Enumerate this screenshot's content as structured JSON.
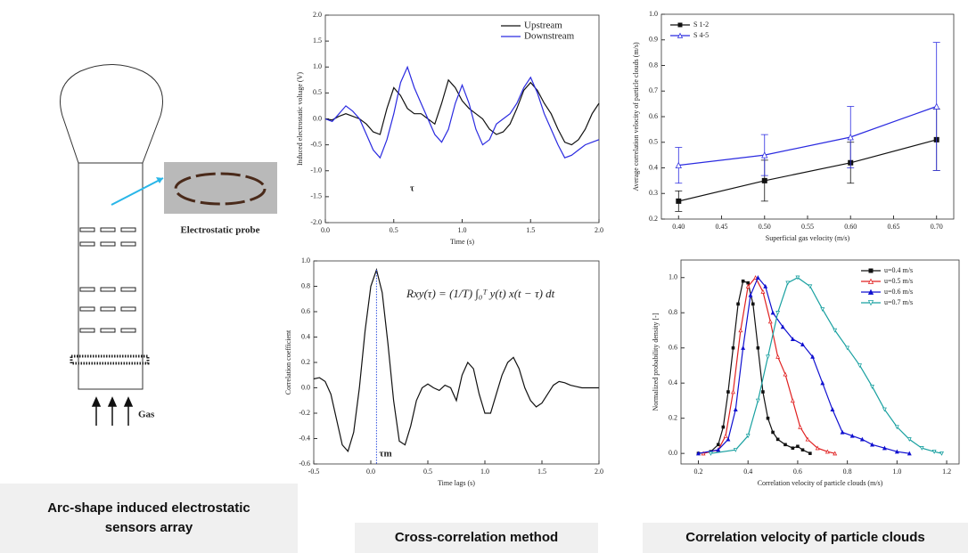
{
  "diagram": {
    "probe_label": "Electrostatic probe",
    "gas_label": "Gas"
  },
  "captions": [
    "Arc-shape induced electrostatic sensors array",
    "Cross-correlation method",
    "Correlation velocity of particle clouds"
  ],
  "chart_data": [
    {
      "type": "line",
      "x_label": "Time (s)",
      "y_label": "Induced electrostatic voltage (V)",
      "annotations": [
        "τ"
      ],
      "legend": "upper right",
      "x": [
        0,
        0.05,
        0.1,
        0.15,
        0.2,
        0.25,
        0.3,
        0.35,
        0.4,
        0.45,
        0.5,
        0.55,
        0.6,
        0.65,
        0.7,
        0.75,
        0.8,
        0.85,
        0.9,
        0.95,
        1.0,
        1.05,
        1.1,
        1.15,
        1.2,
        1.25,
        1.3,
        1.35,
        1.4,
        1.45,
        1.5,
        1.55,
        1.6,
        1.65,
        1.7,
        1.75,
        1.8,
        1.85,
        1.9,
        1.95,
        2.0
      ],
      "series": [
        {
          "name": "Upstream",
          "color": "#111111",
          "values": [
            0,
            -0.02,
            0.05,
            0.1,
            0.05,
            0,
            -0.1,
            -0.25,
            -0.3,
            0.2,
            0.6,
            0.45,
            0.2,
            0.1,
            0.1,
            0.0,
            -0.1,
            0.3,
            0.75,
            0.6,
            0.35,
            0.2,
            0.1,
            0.0,
            -0.2,
            -0.3,
            -0.25,
            -0.1,
            0.2,
            0.55,
            0.7,
            0.55,
            0.3,
            0.1,
            -0.2,
            -0.45,
            -0.5,
            -0.4,
            -0.2,
            0.1,
            0.3
          ]
        },
        {
          "name": "Downstream",
          "color": "#2a2ae0",
          "values": [
            0,
            -0.05,
            0.1,
            0.25,
            0.15,
            0,
            -0.3,
            -0.6,
            -0.75,
            -0.4,
            0.1,
            0.7,
            1.0,
            0.6,
            0.3,
            0.0,
            -0.3,
            -0.45,
            -0.2,
            0.3,
            0.65,
            0.3,
            -0.2,
            -0.5,
            -0.4,
            -0.1,
            0.0,
            0.1,
            0.3,
            0.6,
            0.8,
            0.5,
            0.1,
            -0.2,
            -0.5,
            -0.75,
            -0.7,
            -0.6,
            -0.5,
            -0.45,
            -0.4
          ]
        }
      ],
      "xlim": [
        0,
        2
      ],
      "xticks": [
        {
          "value": 0,
          "label": "0.0"
        },
        0.5,
        {
          "value": 1,
          "label": "1.0"
        },
        1.5,
        {
          "value": 2,
          "label": "2.0"
        }
      ],
      "ylim": [
        -2,
        2
      ],
      "yticks": [
        {
          "value": -2,
          "label": "-2.0"
        },
        -1.5,
        {
          "value": -1,
          "label": "-1.0"
        },
        -0.5,
        {
          "value": 0,
          "label": "0.0"
        },
        0.5,
        {
          "value": 1,
          "label": "1.0"
        },
        1.5,
        {
          "value": 2,
          "label": "2.0"
        }
      ]
    },
    {
      "type": "line",
      "x_label": "Time lags (s)",
      "y_label": "Correlation  coefficient",
      "annotations": [
        "τm",
        "Rxy(τ) = (1/T) ∫₀ᵀ y(t) x(t − τ) dt"
      ],
      "x": [
        -0.5,
        -0.45,
        -0.4,
        -0.35,
        -0.3,
        -0.25,
        -0.2,
        -0.15,
        -0.1,
        -0.05,
        0,
        0.05,
        0.1,
        0.15,
        0.2,
        0.25,
        0.3,
        0.35,
        0.4,
        0.45,
        0.5,
        0.55,
        0.6,
        0.65,
        0.7,
        0.75,
        0.8,
        0.85,
        0.9,
        0.95,
        1.0,
        1.05,
        1.1,
        1.15,
        1.2,
        1.25,
        1.3,
        1.35,
        1.4,
        1.45,
        1.5,
        1.55,
        1.6,
        1.65,
        1.7,
        1.75,
        1.8,
        1.85,
        1.9,
        1.95,
        2.0
      ],
      "series": [
        {
          "name": "Correlation  coefficient",
          "color": "#111111",
          "values": [
            0.07,
            0.08,
            0.05,
            -0.05,
            -0.25,
            -0.45,
            -0.5,
            -0.35,
            0.0,
            0.45,
            0.8,
            0.93,
            0.75,
            0.35,
            -0.1,
            -0.42,
            -0.45,
            -0.3,
            -0.1,
            0.0,
            0.03,
            0.0,
            -0.02,
            0.02,
            0.0,
            -0.1,
            0.1,
            0.2,
            0.15,
            -0.05,
            -0.2,
            -0.2,
            -0.05,
            0.1,
            0.2,
            0.24,
            0.15,
            0.0,
            -0.1,
            -0.15,
            -0.12,
            -0.05,
            0.02,
            0.05,
            0.04,
            0.02,
            0.01,
            0.0,
            0.0,
            0.0,
            0.0
          ]
        }
      ],
      "xlim": [
        -0.5,
        2
      ],
      "xticks": [
        -0.5,
        {
          "value": 0,
          "label": "0.0"
        },
        0.5,
        {
          "value": 1,
          "label": "1.0"
        },
        1.5,
        {
          "value": 2,
          "label": "2.0"
        }
      ],
      "ylim": [
        -0.6,
        1.0
      ],
      "yticks": [
        -0.6,
        -0.4,
        -0.2,
        {
          "value": 0,
          "label": "0.0"
        },
        0.2,
        0.4,
        0.6,
        0.8,
        {
          "value": 1,
          "label": "1.0"
        }
      ]
    },
    {
      "type": "line",
      "x_label": "Superficial gas velocity (m/s)",
      "y_label": "Average correlation velocity of particle clouds (m/s)",
      "legend": "upper left",
      "x": [
        0.4,
        0.5,
        0.6,
        0.7
      ],
      "series": [
        {
          "name": "S 1-2",
          "color": "#111111",
          "marker": "square",
          "values": [
            0.27,
            0.35,
            0.42,
            0.51
          ],
          "errors": [
            0.04,
            0.08,
            0.08,
            0.12
          ]
        },
        {
          "name": "S 4-5",
          "color": "#2a2ae0",
          "marker": "triangle-open",
          "values": [
            0.41,
            0.45,
            0.52,
            0.64
          ],
          "errors": [
            0.07,
            0.08,
            0.12,
            0.25
          ]
        }
      ],
      "xlim": [
        0.38,
        0.72
      ],
      "xticks": [
        {
          "value": 0.4,
          "label": "0.40"
        },
        0.45,
        {
          "value": 0.5,
          "label": "0.50"
        },
        0.55,
        {
          "value": 0.6,
          "label": "0.60"
        },
        0.65,
        {
          "value": 0.7,
          "label": "0.70"
        }
      ],
      "ylim": [
        0.2,
        1.0
      ],
      "yticks": [
        0.2,
        0.3,
        0.4,
        0.5,
        0.6,
        0.7,
        0.8,
        0.9,
        {
          "value": 1,
          "label": "1.0"
        }
      ]
    },
    {
      "type": "line",
      "x_label": "Correlation velocity of particle clouds (m/s)",
      "y_label": "Normalized probability density [-]",
      "legend": "upper right",
      "series": [
        {
          "name": "u=0.4 m/s",
          "color": "#111111",
          "marker": "square",
          "x": [
            0.2,
            0.25,
            0.28,
            0.3,
            0.32,
            0.34,
            0.36,
            0.38,
            0.4,
            0.42,
            0.44,
            0.46,
            0.48,
            0.5,
            0.52,
            0.55,
            0.58,
            0.6,
            0.62,
            0.65
          ],
          "values": [
            0,
            0.01,
            0.05,
            0.15,
            0.35,
            0.6,
            0.85,
            0.98,
            0.97,
            0.85,
            0.6,
            0.35,
            0.2,
            0.12,
            0.08,
            0.05,
            0.03,
            0.04,
            0.02,
            0.0
          ]
        },
        {
          "name": "u=0.5 m/s",
          "color": "#e02020",
          "marker": "triangle-open",
          "x": [
            0.22,
            0.28,
            0.31,
            0.34,
            0.37,
            0.4,
            0.43,
            0.46,
            0.49,
            0.52,
            0.55,
            0.58,
            0.61,
            0.64,
            0.68,
            0.72,
            0.75
          ],
          "values": [
            0,
            0.02,
            0.1,
            0.35,
            0.7,
            0.95,
            1.0,
            0.92,
            0.75,
            0.55,
            0.45,
            0.3,
            0.15,
            0.08,
            0.03,
            0.01,
            0
          ]
        },
        {
          "name": "u=0.6 m/s",
          "color": "#1010d0",
          "marker": "triangle",
          "x": [
            0.2,
            0.28,
            0.32,
            0.35,
            0.38,
            0.41,
            0.44,
            0.47,
            0.5,
            0.54,
            0.58,
            0.62,
            0.66,
            0.7,
            0.74,
            0.78,
            0.82,
            0.86,
            0.9,
            0.95,
            1.0,
            1.05
          ],
          "values": [
            0,
            0.02,
            0.08,
            0.25,
            0.6,
            0.9,
            1.0,
            0.95,
            0.8,
            0.72,
            0.65,
            0.62,
            0.55,
            0.4,
            0.25,
            0.12,
            0.1,
            0.08,
            0.05,
            0.03,
            0.01,
            0
          ]
        },
        {
          "name": "u=0.7 m/s",
          "color": "#18a0a0",
          "marker": "triangle-down",
          "x": [
            0.25,
            0.35,
            0.4,
            0.44,
            0.48,
            0.52,
            0.56,
            0.6,
            0.65,
            0.7,
            0.75,
            0.8,
            0.85,
            0.9,
            0.95,
            1.0,
            1.05,
            1.1,
            1.15,
            1.18
          ],
          "values": [
            0,
            0.02,
            0.1,
            0.3,
            0.55,
            0.8,
            0.97,
            1.0,
            0.95,
            0.82,
            0.7,
            0.6,
            0.5,
            0.38,
            0.25,
            0.15,
            0.08,
            0.03,
            0.01,
            0
          ]
        }
      ],
      "xlim": [
        0.13,
        1.25
      ],
      "xticks": [
        0.2,
        0.4,
        0.6,
        0.8,
        {
          "value": 1,
          "label": "1.0"
        },
        1.2
      ],
      "ylim": [
        -0.06,
        1.1
      ],
      "yticks": [
        {
          "value": 0,
          "label": "0.0"
        },
        0.2,
        0.4,
        0.6,
        0.8,
        {
          "value": 1,
          "label": "1.0"
        }
      ]
    }
  ]
}
